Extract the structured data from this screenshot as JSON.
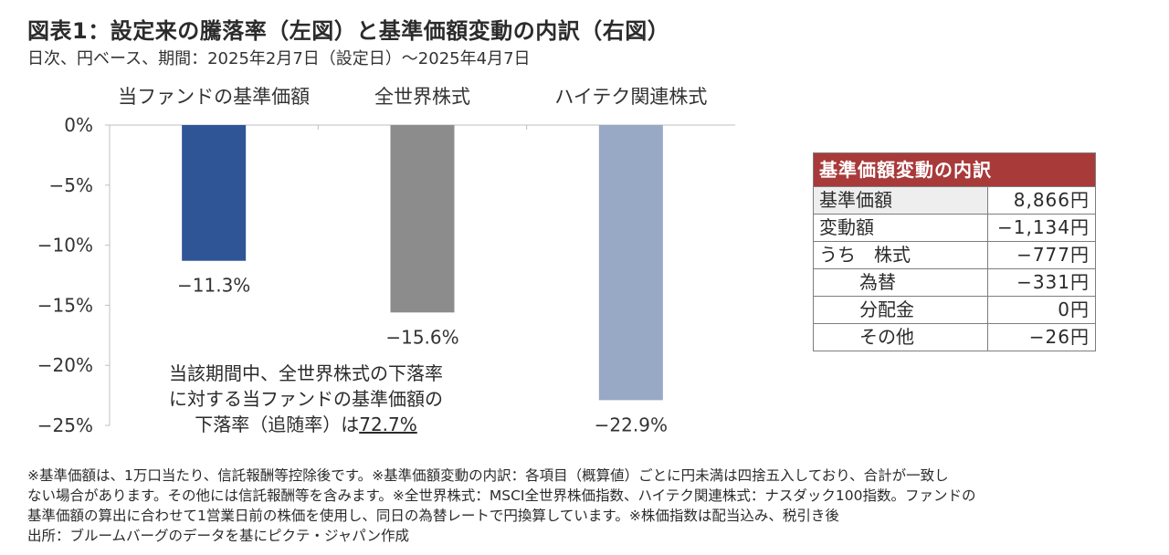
{
  "title": "図表1：設定来の騰落率（左図）と基準価額変動の内訳（右図）",
  "subtitle": "日次、円ベース、期間：2025年2月7日（設定日）〜2025年4月7日",
  "chart_data": {
    "type": "bar",
    "categories": [
      "当ファンドの基準価額",
      "全世界株式",
      "ハイテク関連株式"
    ],
    "values": [
      -11.3,
      -15.6,
      -22.9
    ],
    "value_labels": [
      "−11.3%",
      "−15.6%",
      "−22.9%"
    ],
    "colors": [
      "#2f5597",
      "#8c8c8c",
      "#97a9c4"
    ],
    "ylim": [
      -25,
      0
    ],
    "yticks": [
      0,
      -5,
      -10,
      -15,
      -20,
      -25
    ],
    "ytick_labels": [
      "0%",
      "−5%",
      "−10%",
      "−15%",
      "−20%",
      "−25%"
    ],
    "grid": false,
    "annotation": {
      "line1": "当該期間中、全世界株式の下落率",
      "line2": "に対する当ファンドの基準価額の",
      "line3_prefix": "下落率（追随率）は",
      "line3_value": "72.7%"
    }
  },
  "breakdown": {
    "header": "基準価額変動の内訳",
    "rows": [
      {
        "label": "基準価額",
        "value": "8,866円"
      },
      {
        "label": "変動額",
        "value": "−1,134円"
      },
      {
        "label": "うち　株式",
        "value": "−777円"
      },
      {
        "label": "為替",
        "value": "−331円"
      },
      {
        "label": "分配金",
        "value": "0円"
      },
      {
        "label": "その他",
        "value": "−26円"
      }
    ]
  },
  "notes": {
    "line1": "※基準価額は、1万口当たり、信託報酬等控除後です。※基準価額変動の内訳：各項目（概算値）ごとに円未満は四捨五入しており、合計が一致し",
    "line2": "ない場合があります。その他には信託報酬等を含みます。※全世界株式：MSCI全世界株価指数、ハイテク関連株式：ナスダック100指数。ファンドの",
    "line3": "基準価額の算出に合わせて1営業日前の株価を使用し、同日の為替レートで円換算しています。※株価指数は配当込み、税引き後",
    "line4": "出所：ブルームバーグのデータを基にピクテ・ジャパン作成"
  }
}
